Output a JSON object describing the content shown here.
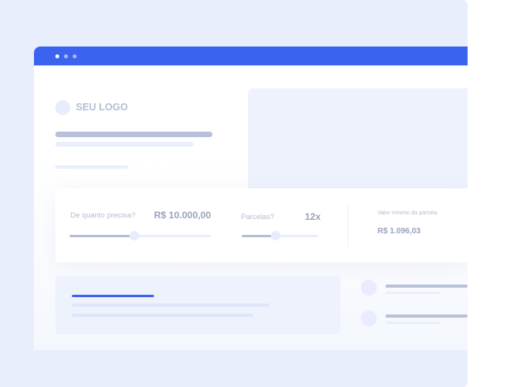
{
  "logo": {
    "text": "SEU LOGO"
  },
  "simulator": {
    "amount_label": "De quanto precisa?",
    "amount_value": "R$ 10.000,00",
    "amount_slider_fraction": 0.46,
    "installments_label": "Parcelas?",
    "installments_value": "12x",
    "installments_slider_fraction": 0.44,
    "min_installment_label": "Valor mínimo da parcela",
    "min_installment_value": "R$ 1.096,03"
  },
  "colors": {
    "accent": "#3b63ef",
    "background": "#e9eefd"
  }
}
